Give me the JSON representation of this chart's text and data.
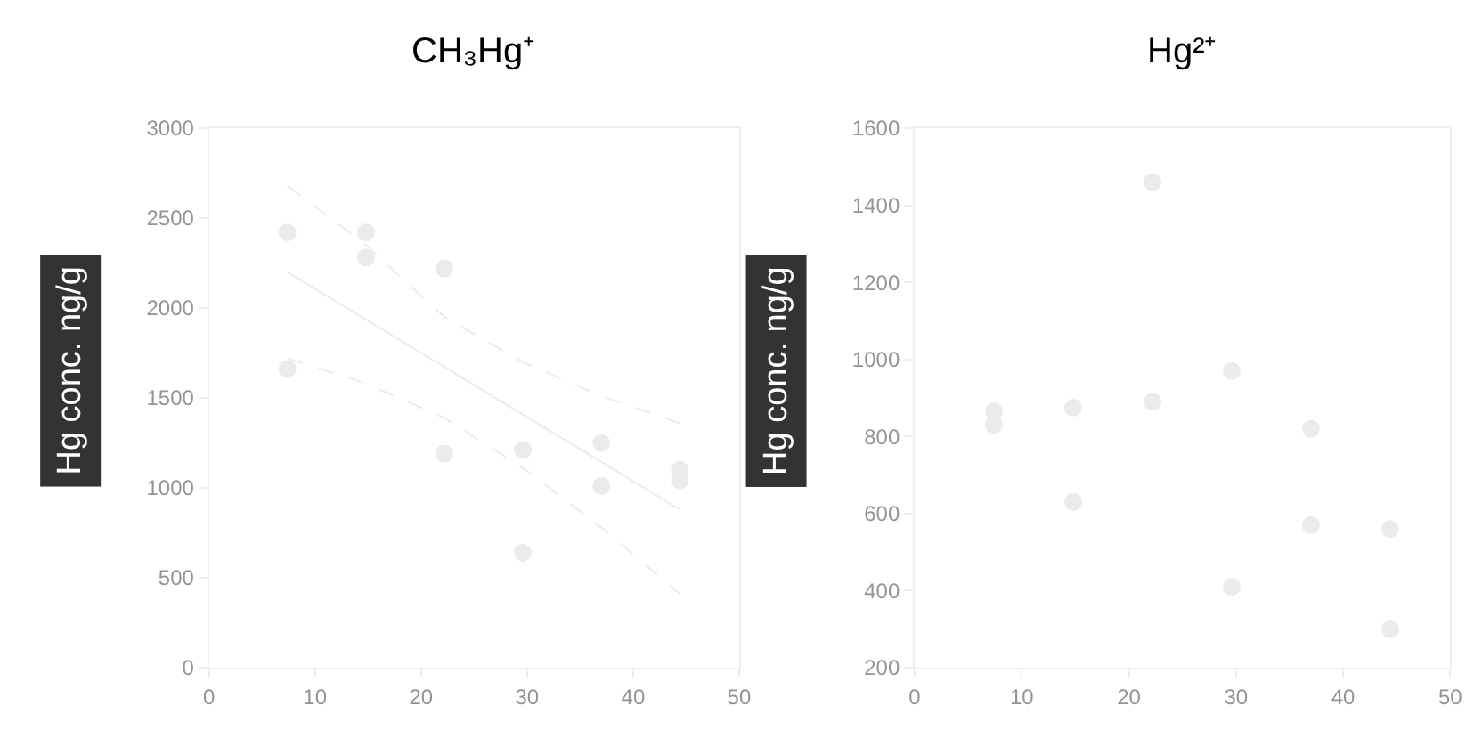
{
  "chart_data": [
    {
      "type": "scatter",
      "title": "CH₃Hg⁺",
      "ylabel": "Hg conc. ng/g",
      "xlim": [
        0,
        50
      ],
      "xticks": [
        0,
        10,
        20,
        30,
        40,
        50
      ],
      "ylim": [
        0,
        3000
      ],
      "yticks": [
        0,
        500,
        1000,
        1500,
        2000,
        2500,
        3000
      ],
      "grid": false,
      "marker": "circle",
      "series": [
        {
          "color": "#ebebeb",
          "x": [
            7.4,
            7.4,
            14.8,
            14.8,
            22.2,
            22.2,
            29.6,
            29.6,
            37.0,
            37.0,
            44.4,
            44.4
          ],
          "values": [
            2420,
            1660,
            2420,
            2280,
            2220,
            1190,
            1210,
            640,
            1250,
            1010,
            1100,
            1040
          ]
        },
        {
          "type": "line",
          "color": "#ebebeb",
          "line_style": "solid",
          "marker": "none",
          "x": [
            7.4,
            44.4
          ],
          "values": [
            2200,
            880
          ]
        },
        {
          "type": "line",
          "color": "#ebebeb",
          "line_style": "dashed",
          "marker": "none",
          "x": [
            7.4,
            14.8,
            22.2,
            29.6,
            37.0,
            44.4
          ],
          "values": [
            2680,
            2350,
            1950,
            1700,
            1510,
            1360
          ]
        },
        {
          "type": "line",
          "color": "#ebebeb",
          "line_style": "dashed",
          "marker": "none",
          "x": [
            7.4,
            14.8,
            22.2,
            29.6,
            37.0,
            44.4
          ],
          "values": [
            1720,
            1580,
            1390,
            1110,
            780,
            410
          ]
        }
      ]
    },
    {
      "type": "scatter",
      "title": "Hg²⁺",
      "ylabel": "Hg conc. ng/g",
      "xlim": [
        0,
        50
      ],
      "xticks": [
        0,
        10,
        20,
        30,
        40,
        50
      ],
      "ylim": [
        200,
        1600
      ],
      "yticks": [
        200,
        400,
        600,
        800,
        1000,
        1200,
        1400,
        1600
      ],
      "grid": false,
      "marker": "circle",
      "series": [
        {
          "color": "#ebebeb",
          "x": [
            7.4,
            7.4,
            14.8,
            14.8,
            22.2,
            22.2,
            29.6,
            29.6,
            37.0,
            37.0,
            44.4,
            44.4
          ],
          "values": [
            865,
            830,
            875,
            630,
            1460,
            890,
            970,
            410,
            820,
            570,
            560,
            300
          ]
        }
      ]
    }
  ]
}
